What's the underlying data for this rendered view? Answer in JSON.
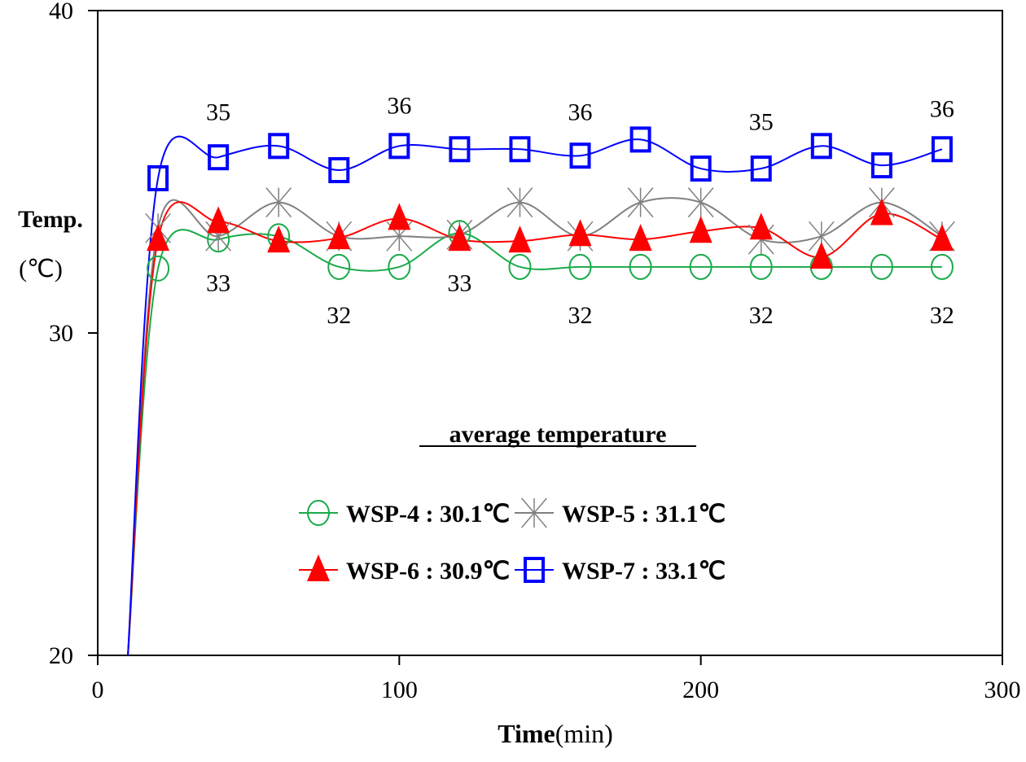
{
  "chart_data": {
    "type": "line",
    "title": "",
    "xlabel": {
      "bold": "Time",
      "regular": "(min)"
    },
    "ylabel": {
      "main": "Temp.",
      "unit": "(℃)"
    },
    "xlim": [
      0,
      300
    ],
    "ylim": [
      20,
      40
    ],
    "xticks": [
      0,
      100,
      200,
      300
    ],
    "yticks": [
      20,
      30,
      40
    ],
    "grid": false,
    "x": [
      10,
      20,
      40,
      60,
      80,
      100,
      120,
      140,
      160,
      180,
      200,
      220,
      240,
      260,
      280
    ],
    "series": [
      {
        "name": "WSP-4",
        "color": "#1aaa4a",
        "marker": "circle",
        "values": [
          20,
          32.0,
          32.9,
          33.0,
          32.05,
          32.05,
          33.1,
          32.05,
          32.05,
          32.05,
          32.05,
          32.05,
          32.05,
          32.05,
          32.05
        ]
      },
      {
        "name": "WSP-5",
        "color": "#808080",
        "marker": "star",
        "values": [
          20,
          33.25,
          33.0,
          34.05,
          33.0,
          33.0,
          33.05,
          34.05,
          33.0,
          34.05,
          34.05,
          32.9,
          33.0,
          34.05,
          33.0
        ]
      },
      {
        "name": "WSP-6",
        "color": "#ff0000",
        "marker": "triangle",
        "values": [
          20,
          32.9,
          33.45,
          32.85,
          32.95,
          33.55,
          32.9,
          32.85,
          33.05,
          32.9,
          33.15,
          33.25,
          32.35,
          33.7,
          32.9
        ]
      },
      {
        "name": "WSP-7",
        "color": "#0000ff",
        "marker": "square",
        "values": [
          20,
          34.8,
          35.45,
          35.8,
          35.05,
          35.8,
          35.7,
          35.7,
          35.5,
          36.0,
          35.1,
          35.1,
          35.8,
          35.2,
          35.7
        ]
      }
    ],
    "annotations": [
      {
        "text": "35",
        "x": 40,
        "y": 36.6
      },
      {
        "text": "36",
        "x": 100,
        "y": 36.8
      },
      {
        "text": "36",
        "x": 160,
        "y": 36.6
      },
      {
        "text": "35",
        "x": 220,
        "y": 36.3
      },
      {
        "text": "36",
        "x": 280,
        "y": 36.7
      },
      {
        "text": "33",
        "x": 40,
        "y": 31.3
      },
      {
        "text": "33",
        "x": 120,
        "y": 31.3
      },
      {
        "text": "32",
        "x": 80,
        "y": 30.3
      },
      {
        "text": "32",
        "x": 160,
        "y": 30.3
      },
      {
        "text": "32",
        "x": 220,
        "y": 30.3
      },
      {
        "text": "32",
        "x": 280,
        "y": 30.3
      }
    ],
    "legend": {
      "title": "average temperature",
      "position": "center-bottom",
      "entries": [
        {
          "series": "WSP-4",
          "label": "WSP-4 : 30.1℃"
        },
        {
          "series": "WSP-5",
          "label": "WSP-5 : 31.1℃"
        },
        {
          "series": "WSP-6",
          "label": "WSP-6 : 30.9℃"
        },
        {
          "series": "WSP-7",
          "label": "WSP-7 : 33.1℃"
        }
      ]
    }
  }
}
